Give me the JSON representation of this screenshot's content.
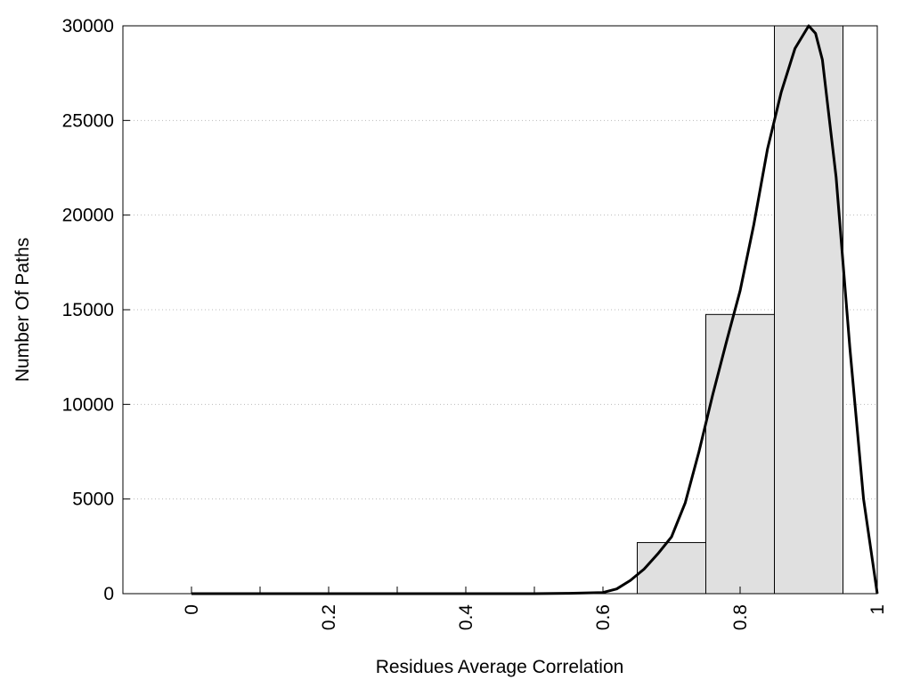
{
  "chart_data": {
    "type": "bar",
    "title": "",
    "xlabel": "Residues Average Correlation",
    "ylabel": "Number Of Paths",
    "xlim": [
      -0.1,
      1.0
    ],
    "ylim": [
      0,
      30000
    ],
    "x_ticks": [
      0,
      0.2,
      0.4,
      0.6,
      0.8,
      1
    ],
    "x_tick_labels": [
      "0",
      "0.2",
      "0.4",
      "0.6",
      "0.8",
      "1"
    ],
    "x_minor_ticks": [
      0.1,
      0.3,
      0.5
    ],
    "y_ticks": [
      0,
      5000,
      10000,
      15000,
      20000,
      25000,
      30000
    ],
    "y_tick_labels": [
      "0",
      "5000",
      "10000",
      "15000",
      "20000",
      "25000",
      "30000"
    ],
    "grid": "horizontal dotted",
    "legend": "none",
    "bar_color": "#e0e0e0",
    "bar_edge_color": "#000000",
    "bins": [
      {
        "x0": 0.65,
        "x1": 0.75,
        "value": 2700
      },
      {
        "x0": 0.75,
        "x1": 0.85,
        "value": 14750
      },
      {
        "x0": 0.85,
        "x1": 0.95,
        "value": 30000
      }
    ],
    "fit_curve": {
      "type": "line",
      "color": "#000000",
      "x": [
        0.0,
        0.1,
        0.2,
        0.3,
        0.4,
        0.5,
        0.55,
        0.6,
        0.62,
        0.64,
        0.66,
        0.68,
        0.7,
        0.72,
        0.74,
        0.76,
        0.78,
        0.8,
        0.82,
        0.84,
        0.86,
        0.88,
        0.9,
        0.91,
        0.92,
        0.94,
        0.96,
        0.98,
        1.0
      ],
      "y": [
        0,
        0,
        0,
        0,
        0,
        0,
        20,
        60,
        250,
        700,
        1300,
        2100,
        3000,
        4800,
        7500,
        10500,
        13300,
        16000,
        19500,
        23500,
        26500,
        28800,
        30000,
        29600,
        28200,
        22000,
        13000,
        5000,
        0
      ]
    }
  }
}
